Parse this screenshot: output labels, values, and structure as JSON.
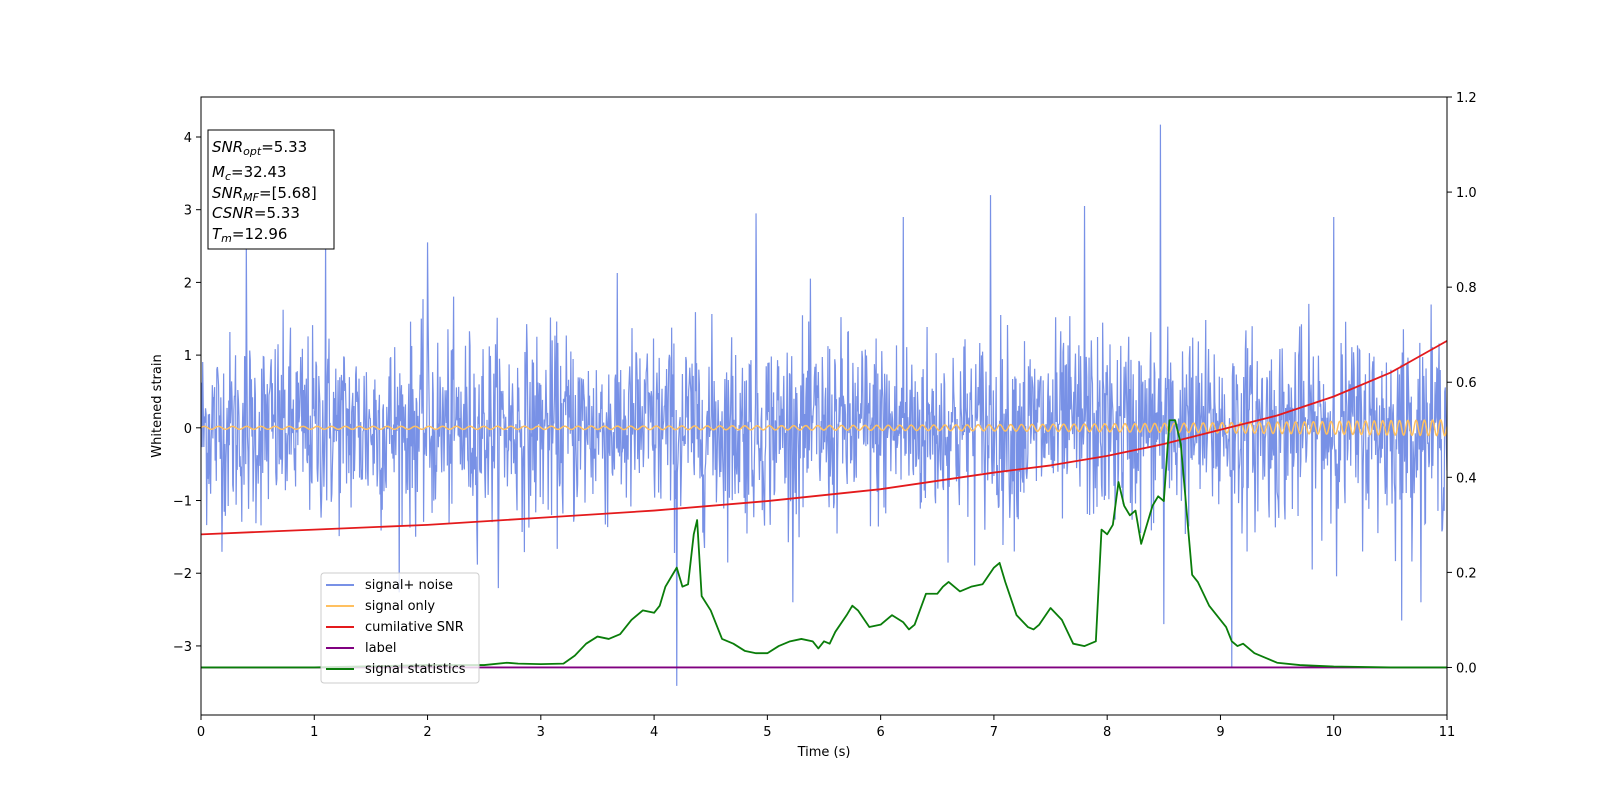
{
  "chart_data": {
    "type": "line",
    "xlabel": "Time (s)",
    "ylabel": "Whitened strain",
    "xlim": [
      0,
      11
    ],
    "ylim_left": [
      -3.95,
      4.55
    ],
    "ylim_right": [
      -0.1,
      1.2
    ],
    "x_ticks": [
      "0",
      "1",
      "2",
      "3",
      "4",
      "5",
      "6",
      "7",
      "8",
      "9",
      "10",
      "11"
    ],
    "y_ticks_left": [
      "−3",
      "−2",
      "−1",
      "0",
      "1",
      "2",
      "3",
      "4"
    ],
    "y_ticks_right": [
      "0.0",
      "0.2",
      "0.4",
      "0.6",
      "0.8",
      "1.0",
      "1.2"
    ],
    "grid": false,
    "legend_position": "lower-left",
    "colors": {
      "signal_noise": "#7891e6",
      "signal_only": "#ffc060",
      "cumulative_snr": "#e41a1c",
      "label": "#800080",
      "signal_statistics": "#0a7d0a"
    },
    "series": [
      {
        "name": "signal+ noise",
        "axis": "left",
        "description_values": {
          "noise_sigma": 0.65,
          "sample_rate": 200
        },
        "spikes": [
          [
            0.4,
            2.55
          ],
          [
            1.1,
            2.6
          ],
          [
            2.0,
            2.55
          ],
          [
            4.2,
            -3.55
          ],
          [
            4.9,
            2.95
          ],
          [
            6.2,
            2.9
          ],
          [
            6.97,
            3.2
          ],
          [
            7.8,
            3.05
          ],
          [
            8.47,
            4.17
          ],
          [
            8.5,
            -2.7
          ],
          [
            9.1,
            -3.3
          ],
          [
            10.0,
            2.9
          ],
          [
            10.6,
            -2.65
          ]
        ]
      },
      {
        "name": "signal only",
        "axis": "left",
        "amplitude_start": 0.02,
        "amplitude_end": 0.11,
        "freq_start": 8,
        "freq_end": 14
      },
      {
        "name": "cumilative SNR",
        "axis": "right",
        "x": [
          0,
          1,
          2,
          3,
          4,
          5,
          6,
          7,
          7.5,
          8,
          8.5,
          9,
          9.5,
          10,
          10.5,
          11
        ],
        "y": [
          0.28,
          0.29,
          0.3,
          0.315,
          0.33,
          0.35,
          0.375,
          0.41,
          0.425,
          0.445,
          0.47,
          0.5,
          0.53,
          0.57,
          0.62,
          0.687
        ]
      },
      {
        "name": "label",
        "axis": "right",
        "x": [
          0,
          11
        ],
        "y": [
          0.0,
          0.0
        ]
      },
      {
        "name": "signal statistics",
        "axis": "right",
        "x": [
          0,
          1,
          2,
          2.5,
          2.7,
          2.8,
          3.0,
          3.2,
          3.3,
          3.4,
          3.5,
          3.6,
          3.7,
          3.8,
          3.9,
          4.0,
          4.05,
          4.1,
          4.15,
          4.2,
          4.25,
          4.3,
          4.35,
          4.38,
          4.42,
          4.5,
          4.6,
          4.7,
          4.8,
          4.9,
          5.0,
          5.1,
          5.2,
          5.3,
          5.4,
          5.45,
          5.5,
          5.55,
          5.6,
          5.7,
          5.75,
          5.8,
          5.9,
          6.0,
          6.1,
          6.2,
          6.25,
          6.3,
          6.4,
          6.5,
          6.55,
          6.6,
          6.7,
          6.8,
          6.9,
          7.0,
          7.05,
          7.1,
          7.2,
          7.3,
          7.35,
          7.4,
          7.5,
          7.6,
          7.7,
          7.8,
          7.9,
          7.95,
          8.0,
          8.05,
          8.1,
          8.15,
          8.2,
          8.25,
          8.3,
          8.35,
          8.4,
          8.45,
          8.5,
          8.55,
          8.6,
          8.65,
          8.75,
          8.8,
          8.9,
          9.0,
          9.05,
          9.1,
          9.15,
          9.2,
          9.3,
          9.4,
          9.5,
          9.7,
          9.9,
          10.0,
          10.5,
          11
        ],
        "y": [
          0.0,
          0.0,
          0.005,
          0.005,
          0.01,
          0.008,
          0.007,
          0.008,
          0.025,
          0.05,
          0.065,
          0.06,
          0.07,
          0.1,
          0.12,
          0.115,
          0.13,
          0.17,
          0.19,
          0.21,
          0.17,
          0.175,
          0.28,
          0.31,
          0.15,
          0.12,
          0.06,
          0.05,
          0.035,
          0.03,
          0.03,
          0.045,
          0.055,
          0.06,
          0.055,
          0.04,
          0.055,
          0.05,
          0.075,
          0.11,
          0.13,
          0.12,
          0.085,
          0.09,
          0.11,
          0.095,
          0.08,
          0.09,
          0.155,
          0.155,
          0.17,
          0.18,
          0.16,
          0.17,
          0.175,
          0.21,
          0.22,
          0.18,
          0.11,
          0.085,
          0.08,
          0.09,
          0.125,
          0.1,
          0.05,
          0.045,
          0.055,
          0.29,
          0.28,
          0.3,
          0.39,
          0.34,
          0.32,
          0.33,
          0.26,
          0.3,
          0.34,
          0.36,
          0.35,
          0.52,
          0.52,
          0.47,
          0.195,
          0.18,
          0.13,
          0.1,
          0.085,
          0.055,
          0.045,
          0.05,
          0.03,
          0.02,
          0.01,
          0.005,
          0.003,
          0.002,
          0.0,
          0.0
        ]
      }
    ],
    "legend": [
      "signal+ noise",
      "signal only",
      "cumilative SNR",
      "label",
      "signal statistics"
    ]
  },
  "info_box": {
    "snr_opt": {
      "base": "SNR",
      "sub": "opt",
      "value": "=5.33"
    },
    "mc": {
      "base": "M",
      "sub": "c",
      "value": "=32.43"
    },
    "snr_mf": {
      "base": "SNR",
      "sub": "MF",
      "value": "=[5.68]"
    },
    "csnr": {
      "base": "CSNR",
      "value": "=5.33"
    },
    "tm": {
      "base": "T",
      "sub": "m",
      "value": "=12.96"
    }
  }
}
